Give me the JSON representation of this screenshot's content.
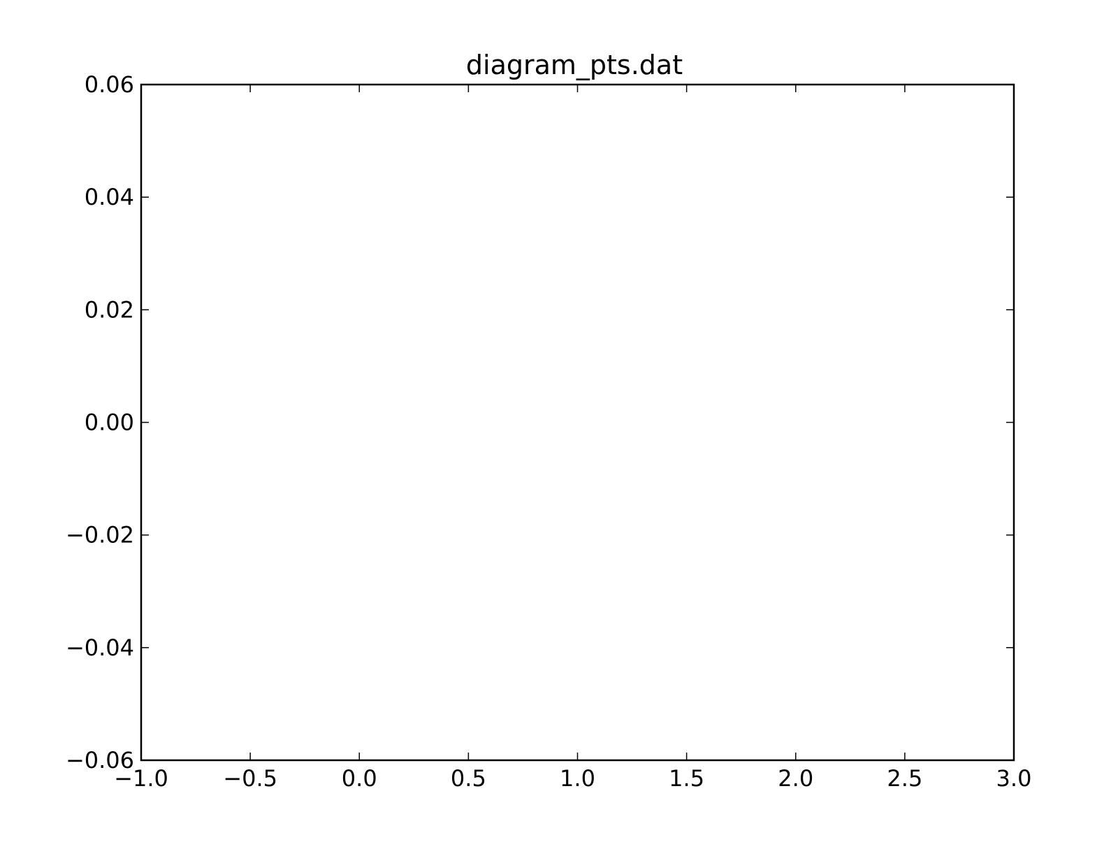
{
  "chart_data": {
    "type": "scatter",
    "title": "diagram_pts.dat",
    "xlabel": "",
    "ylabel": "",
    "xlim": [
      -1.0,
      3.0
    ],
    "ylim": [
      -0.06,
      0.06
    ],
    "x_ticks": [
      -1.0,
      -0.5,
      0.0,
      0.5,
      1.0,
      1.5,
      2.0,
      2.5,
      3.0
    ],
    "x_tick_labels": [
      "−1.0",
      "−0.5",
      "0.0",
      "0.5",
      "1.0",
      "1.5",
      "2.0",
      "2.5",
      "3.0"
    ],
    "y_ticks": [
      0.06,
      0.04,
      0.02,
      0.0,
      -0.02,
      -0.04,
      -0.06
    ],
    "y_tick_labels": [
      "0.06",
      "0.04",
      "0.02",
      "0.00",
      "−0.02",
      "−0.04",
      "−0.06"
    ],
    "grid": false,
    "series": [],
    "colors": {
      "axis": "#000000",
      "background": "#ffffff"
    }
  }
}
